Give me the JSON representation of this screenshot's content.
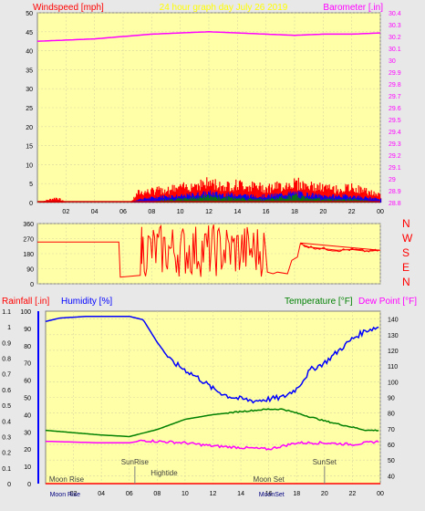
{
  "header": {
    "left_label": "Windspeed [mph]",
    "center_label": "24 hour graph day   July 26 2019",
    "right_label": "Barometer [.in]"
  },
  "colors": {
    "plot_bg": "#ffffa8",
    "red": "#ff0000",
    "blue": "#0000ff",
    "green": "#008000",
    "magenta": "#ff00ff",
    "dark_red": "#cc0000"
  },
  "wind_dir_letters": [
    "N",
    "W",
    "S",
    "E",
    "N"
  ],
  "bottom_labels": {
    "rain": "Rainfall [.in]",
    "humidity": "Humidity [%]",
    "temperature": "Temperature [°F]",
    "dewpoint": "Dew Point [°F]"
  },
  "events": {
    "sunrise": "SunRise",
    "sunset": "SunSet",
    "hightide": "Hightide",
    "moonrise": "Moon Rise",
    "moonset": "Moon Set",
    "moonrise2": "Moon Rise",
    "moonset2": "MoonSet"
  },
  "chart_data": [
    {
      "type": "line",
      "name": "wind-barometer",
      "x_ticks": [
        "02",
        "04",
        "06",
        "08",
        "10",
        "12",
        "14",
        "16",
        "18",
        "20",
        "22",
        "00"
      ],
      "ylim_left": [
        0,
        50
      ],
      "yticks_left": [
        0,
        5,
        10,
        15,
        20,
        25,
        30,
        35,
        40,
        45,
        50
      ],
      "ylim_right": [
        28.8,
        30.4
      ],
      "yticks_right": [
        "28.8",
        "28.9",
        "29",
        "29.1",
        "29.2",
        "29.3",
        "29.4",
        "29.5",
        "29.6",
        "29.7",
        "29.8",
        "29.9",
        "30",
        "30.1",
        "30.2",
        "30.3",
        "30.4"
      ],
      "barometer": {
        "x": [
          0,
          2,
          4,
          6,
          8,
          10,
          12,
          14,
          16,
          18,
          20,
          22,
          24
        ],
        "y": [
          30.16,
          30.17,
          30.18,
          30.2,
          30.22,
          30.23,
          30.24,
          30.23,
          30.22,
          30.21,
          30.22,
          30.22,
          30.23
        ]
      },
      "gust": {
        "x": [
          0,
          1.3,
          2,
          6.5,
          7,
          8,
          9,
          10,
          11,
          12,
          13,
          14,
          15,
          16,
          17,
          18,
          19,
          20,
          21,
          22,
          23,
          24
        ],
        "y": [
          0,
          1.5,
          0,
          0,
          3,
          3.5,
          4,
          4.5,
          5.5,
          6,
          5,
          5.5,
          5,
          4.5,
          5,
          6,
          5,
          4.5,
          4,
          4.5,
          3.5,
          2
        ]
      },
      "average": {
        "x": [
          0,
          6.5,
          7,
          8,
          9,
          10,
          11,
          12,
          13,
          14,
          15,
          16,
          17,
          18,
          19,
          20,
          21,
          22,
          23,
          24
        ],
        "y": [
          0,
          0,
          1,
          1.5,
          2,
          2,
          2.5,
          3,
          2.5,
          2.5,
          2,
          2,
          2.5,
          3,
          2.5,
          2,
          2,
          2,
          1.5,
          1
        ]
      },
      "speed": {
        "x": [
          0,
          8,
          9,
          10,
          11,
          12,
          13,
          14,
          15,
          16,
          17,
          18,
          19,
          20,
          21,
          22,
          23,
          24
        ],
        "y": [
          0,
          0,
          1,
          1,
          1.5,
          2,
          1.5,
          1.5,
          1,
          1,
          1.5,
          2,
          1.5,
          1,
          1,
          1,
          0.5,
          0
        ]
      }
    },
    {
      "type": "line",
      "name": "wind-direction",
      "y_ticks": [
        "0",
        "90",
        "180",
        "270",
        "360"
      ],
      "ylim": [
        0,
        360
      ],
      "x": [
        0,
        5.7,
        5.8,
        7.2,
        7.3,
        16.1,
        16.5,
        16.8,
        17.5,
        17.8,
        18.2,
        18.4,
        19,
        20,
        21,
        22,
        23,
        24
      ],
      "y": [
        250,
        250,
        40,
        50,
        340,
        70,
        60,
        70,
        60,
        140,
        160,
        240,
        220,
        210,
        200,
        205,
        195,
        200
      ],
      "noisy_range": [
        7.3,
        16
      ]
    },
    {
      "type": "line",
      "name": "rain-humidity-temperature",
      "x_ticks": [
        "02",
        "04",
        "06",
        "08",
        "10",
        "12",
        "14",
        "16",
        "18",
        "20",
        "22",
        "00"
      ],
      "y_left_rain_ticks": [
        "0",
        "0.1",
        "0.2",
        "0.3",
        "0.4",
        "0.5",
        "0.6",
        "0.7",
        "0.8",
        "0.9",
        "1",
        "1.1"
      ],
      "y_left_humidity_ticks": [
        "0",
        "10",
        "20",
        "30",
        "40",
        "50",
        "60",
        "70",
        "80",
        "90",
        "100"
      ],
      "y_right_ticks": [
        "40",
        "50",
        "60",
        "70",
        "80",
        "90",
        "100",
        "110",
        "120",
        "130",
        "140"
      ],
      "ylim_right": [
        35,
        145
      ],
      "humidity": {
        "x": [
          0,
          1,
          3,
          6,
          7,
          8,
          9,
          10,
          11,
          12,
          13,
          14,
          15,
          16,
          17,
          18,
          19,
          20,
          21,
          22,
          23,
          24
        ],
        "y": [
          94,
          96,
          97,
          97,
          95,
          82,
          71,
          66,
          61,
          55,
          51,
          49,
          48,
          49,
          50,
          55,
          66,
          70,
          77,
          84,
          89,
          91
        ]
      },
      "temperature": {
        "x": [
          0,
          2,
          4,
          6,
          8,
          10,
          12,
          14,
          16,
          17,
          18,
          20,
          22,
          23,
          24
        ],
        "y": [
          69,
          67.5,
          66,
          65,
          69.5,
          76,
          79,
          81,
          82.5,
          82.5,
          80,
          75,
          71,
          69,
          69
        ]
      },
      "dewpoint": {
        "x": [
          0,
          2,
          4,
          6,
          7,
          8,
          10,
          12,
          14,
          16,
          18,
          20,
          22,
          24
        ],
        "y": [
          62,
          61.5,
          61,
          61,
          62.5,
          62,
          61,
          59,
          58,
          57,
          61,
          61,
          60,
          62
        ]
      }
    }
  ]
}
